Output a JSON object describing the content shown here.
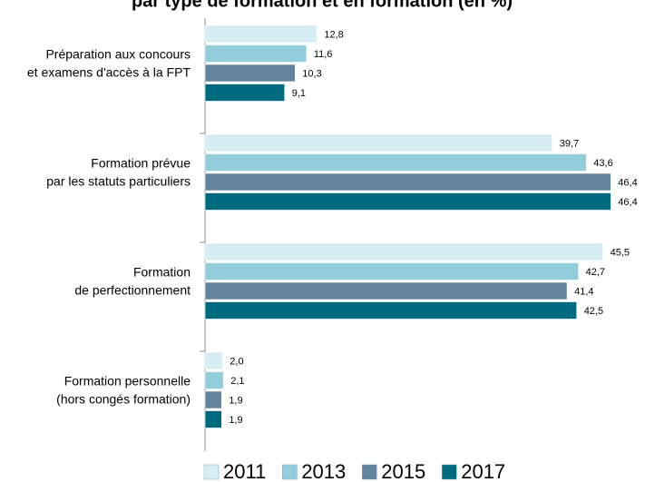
{
  "chart_data": {
    "type": "bar",
    "orientation": "horizontal",
    "title": "par type de formation et en formation (en %)",
    "categories": [
      [
        "Préparation aux concours",
        "et examens d'accès à la FPT"
      ],
      [
        "Formation prévue",
        "par les statuts particuliers"
      ],
      [
        "Formation",
        "de perfectionnement"
      ],
      [
        "Formation personnelle",
        "(hors congés formation)"
      ]
    ],
    "series": [
      {
        "name": "2011",
        "color": "#d7edf4",
        "values": [
          12.8,
          39.7,
          45.5,
          2.0
        ],
        "value_labels": [
          "12,8",
          "39,7",
          "45,5",
          "2,0"
        ]
      },
      {
        "name": "2013",
        "color": "#92cddc",
        "values": [
          11.6,
          43.6,
          42.7,
          2.1
        ],
        "value_labels": [
          "11,6",
          "43,6",
          "42,7",
          "2,1"
        ]
      },
      {
        "name": "2015",
        "color": "#64849d",
        "values": [
          10.3,
          46.4,
          41.4,
          1.9
        ],
        "value_labels": [
          "10,3",
          "46,4",
          "41,4",
          "1,9"
        ]
      },
      {
        "name": "2017",
        "color": "#006b7f",
        "values": [
          9.1,
          46.4,
          42.5,
          1.9
        ],
        "value_labels": [
          "9,1",
          "46,4",
          "42,5",
          "1,9"
        ]
      }
    ],
    "xlim": [
      0,
      50
    ],
    "legend": "bottom"
  }
}
